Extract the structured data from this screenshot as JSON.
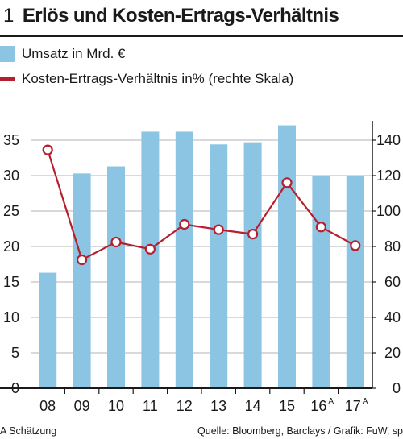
{
  "header": {
    "number": "1",
    "title": "Erlös und Kosten-Ertrags-Verhältnis"
  },
  "legend": {
    "bar_label": "Umsatz in Mrd. €",
    "line_label": "Kosten-Ertrags-Verhältnis in% (rechte Skala)"
  },
  "footer": {
    "note": "A Schätzung",
    "source": "Quelle: Bloomberg, Barclays / Grafik: FuW, sp"
  },
  "chart_data": {
    "type": "bar",
    "categories": [
      "08",
      "09",
      "10",
      "11",
      "12",
      "13",
      "14",
      "15",
      "16",
      "17"
    ],
    "category_superscripts": [
      "",
      "",
      "",
      "",
      "",
      "",
      "",
      "",
      "A",
      "A"
    ],
    "series": [
      {
        "name": "Umsatz in Mrd. €",
        "type": "bar",
        "axis": "left",
        "color": "#8cc5e3",
        "values": [
          16.3,
          30.3,
          31.3,
          36.2,
          36.2,
          34.4,
          34.7,
          37.1,
          30.0,
          30.0
        ]
      },
      {
        "name": "Kosten-Ertrags-Verhältnis in% (rechte Skala)",
        "type": "line",
        "axis": "right",
        "color": "#b5202e",
        "values": [
          134.5,
          72.5,
          82.5,
          78.5,
          92.5,
          89.5,
          87.0,
          116.0,
          91.0,
          80.5
        ]
      }
    ],
    "ylim_left": [
      0,
      40
    ],
    "yticks_left": [
      "0",
      "5",
      "10",
      "15",
      "20",
      "25",
      "30",
      "35"
    ],
    "ylim_right": [
      0,
      160
    ],
    "yticks_right": [
      "0",
      "20",
      "40",
      "60",
      "80",
      "100",
      "120",
      "140"
    ],
    "grid": true,
    "xlabel": "",
    "ylabel": ""
  }
}
